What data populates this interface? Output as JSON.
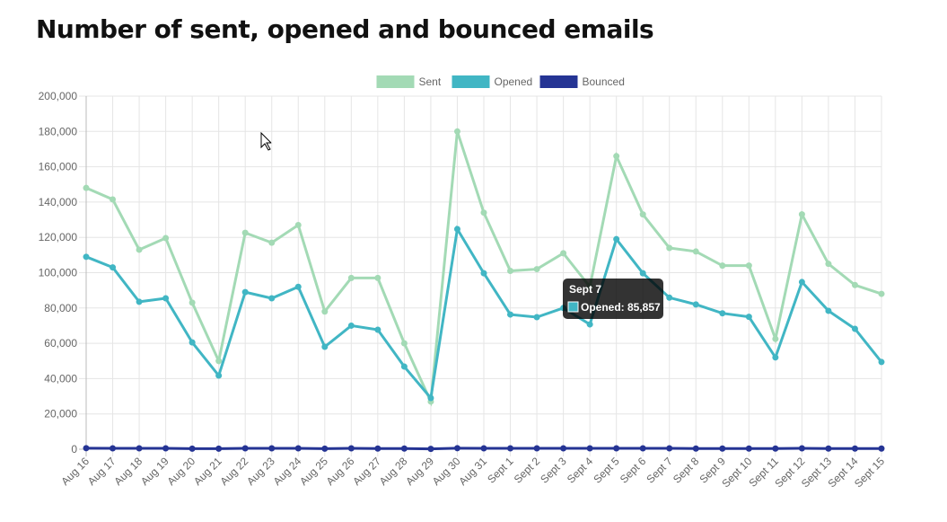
{
  "chart_data": {
    "type": "line",
    "title": "Number of sent, opened and bounced emails",
    "categories": [
      "Aug 16",
      "Aug 17",
      "Aug 18",
      "Aug 19",
      "Aug 20",
      "Aug 21",
      "Aug 22",
      "Aug 23",
      "Aug 24",
      "Aug 25",
      "Aug 26",
      "Aug 27",
      "Aug 28",
      "Aug 29",
      "Aug 30",
      "Aug 31",
      "Sept 1",
      "Sept 2",
      "Sept 3",
      "Sept 4",
      "Sept 5",
      "Sept 6",
      "Sept 7",
      "Sept 8",
      "Sept 9",
      "Sept 10",
      "Sept 11",
      "Sept 12",
      "Sept 13",
      "Sept 14",
      "Sept 15"
    ],
    "series": [
      {
        "name": "Sent",
        "color": "#a3dab5",
        "values": [
          148000,
          141500,
          113000,
          119600,
          83000,
          50000,
          122600,
          117000,
          127000,
          78000,
          97000,
          97000,
          60000,
          27000,
          180000,
          134000,
          101000,
          102000,
          111000,
          92000,
          166000,
          133000,
          114000,
          112000,
          104000,
          104000,
          62500,
          133000,
          105000,
          93000,
          88000
        ]
      },
      {
        "name": "Opened",
        "color": "#41b6c4",
        "values": [
          109000,
          103000,
          83500,
          85500,
          60500,
          41700,
          89000,
          85500,
          92000,
          58000,
          70000,
          67700,
          46800,
          29000,
          124700,
          99700,
          76300,
          74800,
          80000,
          70700,
          119000,
          99700,
          85857,
          82000,
          77000,
          75000,
          52000,
          94700,
          78400,
          68200,
          49400
        ]
      },
      {
        "name": "Bounced",
        "color": "#253494",
        "values": [
          600,
          500,
          500,
          500,
          300,
          300,
          500,
          500,
          500,
          300,
          500,
          400,
          400,
          200,
          600,
          500,
          500,
          500,
          500,
          500,
          500,
          500,
          500,
          400,
          400,
          400,
          400,
          500,
          400,
          400,
          400
        ]
      }
    ],
    "ylim": [
      0,
      200000
    ],
    "yticks": [
      0,
      {
        "value": 20000,
        "label": "20,000"
      },
      {
        "value": 40000,
        "label": "40,000"
      },
      {
        "value": 60000,
        "label": "60,000"
      },
      {
        "value": 80000,
        "label": "80,000"
      },
      {
        "value": 100000,
        "label": "100,000"
      },
      {
        "value": 120000,
        "label": "120,000"
      },
      {
        "value": 140000,
        "label": "140,000"
      },
      {
        "value": 160000,
        "label": "160,000"
      },
      {
        "value": 180000,
        "label": "180,000"
      },
      {
        "value": 200000,
        "label": "200,000"
      }
    ],
    "grid": true,
    "legend": "top",
    "tooltip": {
      "category": "Sept 7",
      "text": "Opened: 85,857",
      "series": 1,
      "index": 22
    }
  }
}
